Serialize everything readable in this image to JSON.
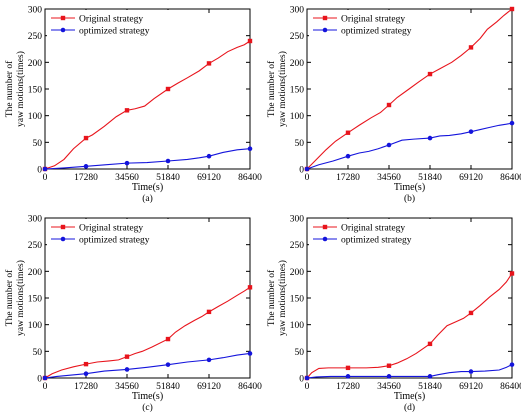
{
  "colors": {
    "original": "#e8141c",
    "optimized": "#1414dc",
    "axis": "#000000",
    "background": "#ffffff"
  },
  "chart_data": [
    {
      "type": "line",
      "panel_label": "(a)",
      "xlabel": "Time(s)",
      "ylabel_lines": [
        "The number of",
        "yaw motions(times)"
      ],
      "xlim": [
        0,
        86400
      ],
      "ylim": [
        0,
        300
      ],
      "xticks": [
        0,
        17280,
        34560,
        51840,
        69120,
        86400
      ],
      "yticks": [
        0,
        50,
        100,
        150,
        200,
        250,
        300
      ],
      "grid": false,
      "legend_position": "top-left",
      "series": [
        {
          "name": "Original strategy",
          "marker": "square",
          "color_key": "original",
          "x": [
            0,
            4000,
            8000,
            12000,
            17280,
            20000,
            25000,
            30000,
            34560,
            38000,
            42000,
            46000,
            51840,
            56000,
            60000,
            65000,
            69120,
            73000,
            77000,
            81000,
            84000,
            86400
          ],
          "y": [
            0,
            6,
            18,
            38,
            58,
            64,
            80,
            98,
            110,
            113,
            118,
            132,
            150,
            161,
            171,
            184,
            198,
            208,
            220,
            228,
            233,
            240
          ]
        },
        {
          "name": "optimized strategy",
          "marker": "circle",
          "color_key": "optimized",
          "x": [
            0,
            8000,
            17280,
            26000,
            34560,
            43000,
            51840,
            60000,
            65000,
            69120,
            75000,
            81000,
            86400
          ],
          "y": [
            0,
            2,
            5,
            8,
            11,
            12,
            15,
            18,
            21,
            24,
            31,
            36,
            38
          ]
        }
      ]
    },
    {
      "type": "line",
      "panel_label": "(b)",
      "xlabel": "Time(s)",
      "ylabel_lines": [
        "The number of",
        "yaw motions(times)"
      ],
      "xlim": [
        0,
        86400
      ],
      "ylim": [
        0,
        300
      ],
      "xticks": [
        0,
        17280,
        34560,
        51840,
        69120,
        86400
      ],
      "yticks": [
        0,
        50,
        100,
        150,
        200,
        250,
        300
      ],
      "grid": false,
      "legend_position": "top-left",
      "series": [
        {
          "name": "Original strategy",
          "marker": "square",
          "color_key": "original",
          "x": [
            0,
            4000,
            8000,
            12000,
            17280,
            22000,
            27000,
            31000,
            34560,
            38000,
            43000,
            47000,
            51840,
            56000,
            61000,
            65000,
            69120,
            73000,
            76000,
            80000,
            83000,
            86400
          ],
          "y": [
            0,
            18,
            36,
            52,
            68,
            82,
            96,
            106,
            120,
            134,
            150,
            163,
            178,
            188,
            200,
            213,
            228,
            245,
            262,
            276,
            288,
            300
          ]
        },
        {
          "name": "optimized strategy",
          "marker": "circle",
          "color_key": "optimized",
          "x": [
            0,
            5000,
            11000,
            17280,
            22000,
            26000,
            30000,
            34560,
            40000,
            45000,
            51840,
            56000,
            60000,
            65000,
            69120,
            73000,
            77000,
            81000,
            84000,
            86400
          ],
          "y": [
            0,
            8,
            15,
            24,
            30,
            33,
            38,
            45,
            54,
            56,
            58,
            62,
            63,
            66,
            70,
            74,
            78,
            82,
            84,
            86
          ]
        }
      ]
    },
    {
      "type": "line",
      "panel_label": "(c)",
      "xlabel": "Time(s)",
      "ylabel_lines": [
        "The number of",
        "yaw motions(times)"
      ],
      "xlim": [
        0,
        86400
      ],
      "ylim": [
        0,
        300
      ],
      "xticks": [
        0,
        17280,
        34560,
        51840,
        69120,
        86400
      ],
      "yticks": [
        0,
        50,
        100,
        150,
        200,
        250,
        300
      ],
      "grid": false,
      "legend_position": "top-left",
      "series": [
        {
          "name": "Original strategy",
          "marker": "square",
          "color_key": "original",
          "x": [
            0,
            3000,
            7000,
            12000,
            17280,
            22000,
            27000,
            31000,
            34560,
            38000,
            41000,
            45000,
            51840,
            55000,
            59000,
            63000,
            66000,
            69120,
            73000,
            77000,
            81000,
            84000,
            86400
          ],
          "y": [
            0,
            8,
            15,
            21,
            26,
            30,
            32,
            34,
            40,
            46,
            50,
            58,
            73,
            86,
            98,
            108,
            115,
            124,
            134,
            144,
            155,
            163,
            170
          ]
        },
        {
          "name": "optimized strategy",
          "marker": "circle",
          "color_key": "optimized",
          "x": [
            0,
            5000,
            10000,
            17280,
            25000,
            34560,
            43000,
            51840,
            60000,
            69120,
            75000,
            81000,
            86400
          ],
          "y": [
            0,
            3,
            5,
            8,
            13,
            16,
            20,
            25,
            30,
            34,
            38,
            43,
            46
          ]
        }
      ]
    },
    {
      "type": "line",
      "panel_label": "(d)",
      "xlabel": "Time(s)",
      "ylabel_lines": [
        "The number of",
        "yaw motions(times)"
      ],
      "xlim": [
        0,
        86400
      ],
      "ylim": [
        0,
        300
      ],
      "xticks": [
        0,
        17280,
        34560,
        51840,
        69120,
        86400
      ],
      "yticks": [
        0,
        50,
        100,
        150,
        200,
        250,
        300
      ],
      "grid": false,
      "legend_position": "top-left",
      "series": [
        {
          "name": "Original strategy",
          "marker": "square",
          "color_key": "original",
          "x": [
            0,
            2000,
            5000,
            9000,
            17280,
            25000,
            30000,
            34560,
            38000,
            42000,
            46000,
            51840,
            55000,
            59000,
            63000,
            66000,
            69120,
            73000,
            77000,
            81000,
            84000,
            86400
          ],
          "y": [
            0,
            10,
            18,
            19,
            19,
            19,
            20,
            23,
            28,
            36,
            46,
            64,
            80,
            98,
            106,
            112,
            122,
            136,
            152,
            166,
            180,
            196
          ]
        },
        {
          "name": "optimized strategy",
          "marker": "circle",
          "color_key": "optimized",
          "x": [
            0,
            4000,
            10000,
            17280,
            25000,
            34560,
            43000,
            51840,
            55000,
            60000,
            65000,
            69120,
            75000,
            81000,
            84000,
            86400
          ],
          "y": [
            0,
            2,
            3,
            3,
            3,
            3,
            3,
            3,
            6,
            10,
            12,
            12,
            13,
            15,
            20,
            25
          ]
        }
      ]
    }
  ]
}
